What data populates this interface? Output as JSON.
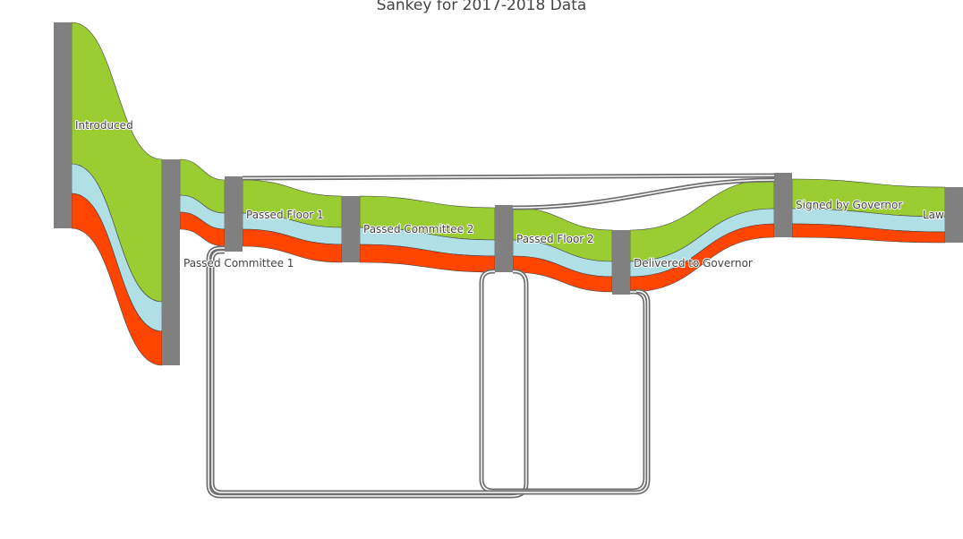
{
  "chart_data": {
    "type": "sankey",
    "title": "Sankey for 2017-2018 Data",
    "nodes": [
      "Introduced",
      "Passed Committee 1",
      "Passed Floor 1",
      "Passed Committee 2",
      "Passed Floor 2",
      "Delivered to Governor",
      "Signed by Governor",
      "Law"
    ],
    "series": [
      {
        "name": "",
        "color": "#9acd32"
      },
      {
        "name": "",
        "color": "#b0e0e6"
      },
      {
        "name": "",
        "color": "#ff4500"
      }
    ],
    "links": [
      {
        "source": "Introduced",
        "target": "Passed Committee 1",
        "values": [
          14,
          4,
          3
        ]
      },
      {
        "source": "Passed Committee 1",
        "target": "Passed Floor 1",
        "values": [
          4,
          1.5,
          1.5
        ]
      },
      {
        "source": "Passed Floor 1",
        "target": "Passed Committee 2",
        "values": [
          4,
          1.5,
          1.5
        ]
      },
      {
        "source": "Passed Committee 2",
        "target": "Passed Floor 2",
        "values": [
          4,
          1.5,
          1.5
        ]
      },
      {
        "source": "Passed Floor 2",
        "target": "Delivered to Governor",
        "values": [
          3,
          1.5,
          1.5
        ]
      },
      {
        "source": "Delivered to Governor",
        "target": "Signed by Governor",
        "values": [
          3,
          1.5,
          1.5
        ]
      },
      {
        "source": "Signed by Governor",
        "target": "Law",
        "values": [
          3,
          1.5,
          1.5
        ]
      },
      {
        "source": "Passed Committee 1",
        "target": "Signed by Governor",
        "values": [
          0.3
        ]
      },
      {
        "source": "Passed Committee 2",
        "target": "Signed by Governor",
        "values": [
          0.3
        ]
      },
      {
        "source": "Passed Committee 1",
        "target": "Passed Floor 2",
        "values": [
          0.3
        ]
      },
      {
        "source": "Passed Floor 1",
        "target": "Delivered to Governor",
        "values": [
          0.3
        ]
      },
      {
        "source": "Passed Floor 2",
        "target": "Passed Floor 2",
        "values": [
          0.3
        ]
      }
    ],
    "node_color": "#808080"
  }
}
